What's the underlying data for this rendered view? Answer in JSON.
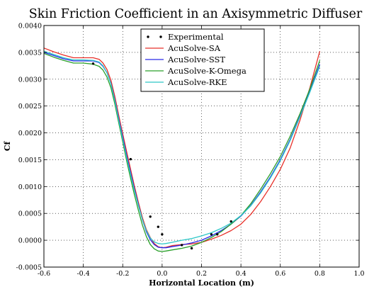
{
  "chart_data": {
    "type": "line",
    "title": "Skin Friction Coefficient in an Axisymmetric Diffuser",
    "xlabel": "Horizontal Location (m)",
    "ylabel": "Cf",
    "xlim": [
      -0.6,
      1.0
    ],
    "ylim": [
      -0.0005,
      0.004
    ],
    "grid": true,
    "grid_style": "dotted",
    "legend_position": "top-center",
    "x_ticks": [
      "-0.6",
      "-0.4",
      "-0.2",
      "0.0",
      "0.2",
      "0.4",
      "0.6",
      "0.8",
      "1.0"
    ],
    "x_tick_values": [
      -0.6,
      -0.4,
      -0.2,
      0.0,
      0.2,
      0.4,
      0.6,
      0.8,
      1.0
    ],
    "y_ticks": [
      "-0.0005",
      "0.0000",
      "0.0005",
      "0.0010",
      "0.0015",
      "0.0020",
      "0.0025",
      "0.0030",
      "0.0035",
      "0.0040"
    ],
    "y_tick_values": [
      -0.0005,
      0.0,
      0.0005,
      0.001,
      0.0015,
      0.002,
      0.0025,
      0.003,
      0.0035,
      0.004
    ],
    "scatter": {
      "name": "Experimental",
      "color": "#000000",
      "points": [
        [
          -0.35,
          0.00329
        ],
        [
          -0.16,
          0.00151
        ],
        [
          -0.06,
          0.00044
        ],
        [
          -0.02,
          0.00025
        ],
        [
          0.0,
          0.00011
        ],
        [
          0.1,
          -9e-05
        ],
        [
          0.15,
          -0.00015
        ],
        [
          0.25,
          0.00011
        ],
        [
          0.28,
          0.00011
        ],
        [
          0.35,
          0.00035
        ]
      ]
    },
    "series": [
      {
        "name": "AcuSolve-SA",
        "color": "#e8312a",
        "x": [
          -0.6,
          -0.55,
          -0.5,
          -0.45,
          -0.4,
          -0.35,
          -0.32,
          -0.3,
          -0.28,
          -0.26,
          -0.24,
          -0.22,
          -0.2,
          -0.18,
          -0.16,
          -0.14,
          -0.12,
          -0.1,
          -0.08,
          -0.06,
          -0.04,
          -0.02,
          0.0,
          0.02,
          0.05,
          0.1,
          0.15,
          0.2,
          0.25,
          0.3,
          0.35,
          0.4,
          0.45,
          0.5,
          0.55,
          0.6,
          0.65,
          0.7,
          0.75,
          0.8
        ],
        "y": [
          0.00358,
          0.00351,
          0.00345,
          0.0034,
          0.0034,
          0.0034,
          0.00337,
          0.0033,
          0.00318,
          0.00298,
          0.00268,
          0.00232,
          0.00198,
          0.00165,
          0.00132,
          0.001,
          0.0007,
          0.00042,
          0.0002,
          5e-05,
          -6e-05,
          -0.00012,
          -0.00014,
          -0.00013,
          -0.0001,
          -8e-05,
          -7e-05,
          -4e-05,
          2e-05,
          9e-05,
          0.00018,
          0.0003,
          0.00048,
          0.00072,
          0.001,
          0.00132,
          0.00172,
          0.00224,
          0.00284,
          0.00352
        ]
      },
      {
        "name": "AcuSolve-SST",
        "color": "#2a2ae8",
        "x": [
          -0.6,
          -0.55,
          -0.5,
          -0.45,
          -0.4,
          -0.35,
          -0.32,
          -0.3,
          -0.28,
          -0.26,
          -0.24,
          -0.22,
          -0.2,
          -0.18,
          -0.16,
          -0.14,
          -0.12,
          -0.1,
          -0.08,
          -0.06,
          -0.04,
          -0.02,
          0.0,
          0.02,
          0.05,
          0.1,
          0.15,
          0.2,
          0.25,
          0.3,
          0.35,
          0.4,
          0.45,
          0.5,
          0.55,
          0.6,
          0.65,
          0.7,
          0.75,
          0.8
        ],
        "y": [
          0.0035,
          0.00344,
          0.00338,
          0.00334,
          0.00334,
          0.00334,
          0.00331,
          0.00324,
          0.00312,
          0.00292,
          0.00262,
          0.00226,
          0.00192,
          0.00158,
          0.00126,
          0.00095,
          0.00066,
          0.00038,
          0.00016,
          1e-05,
          -8e-05,
          -0.00013,
          -0.00014,
          -0.00014,
          -0.00012,
          -9e-05,
          -5e-05,
          0.0,
          8e-05,
          0.00018,
          0.0003,
          0.00045,
          0.00065,
          0.0009,
          0.00118,
          0.0015,
          0.00188,
          0.00232,
          0.00278,
          0.00328
        ]
      },
      {
        "name": "AcuSolve-K-Omega",
        "color": "#2aa02a",
        "x": [
          -0.6,
          -0.55,
          -0.5,
          -0.45,
          -0.4,
          -0.35,
          -0.32,
          -0.3,
          -0.28,
          -0.26,
          -0.24,
          -0.22,
          -0.2,
          -0.18,
          -0.16,
          -0.14,
          -0.12,
          -0.1,
          -0.08,
          -0.06,
          -0.04,
          -0.02,
          0.0,
          0.02,
          0.05,
          0.1,
          0.15,
          0.2,
          0.25,
          0.3,
          0.35,
          0.4,
          0.45,
          0.5,
          0.55,
          0.6,
          0.65,
          0.7,
          0.75,
          0.8
        ],
        "y": [
          0.00348,
          0.00341,
          0.00335,
          0.0033,
          0.0033,
          0.00328,
          0.00324,
          0.00317,
          0.00304,
          0.00284,
          0.00254,
          0.00218,
          0.00183,
          0.00148,
          0.00115,
          0.00084,
          0.00055,
          0.00028,
          7e-05,
          -8e-05,
          -0.00016,
          -0.0002,
          -0.00021,
          -0.0002,
          -0.00018,
          -0.00015,
          -0.00011,
          -4e-05,
          5e-05,
          0.00016,
          0.0003,
          0.00046,
          0.00068,
          0.00095,
          0.00124,
          0.00156,
          0.00194,
          0.00236,
          0.00282,
          0.00335
        ]
      },
      {
        "name": "AcuSolve-RKE",
        "color": "#2ec8c8",
        "x": [
          -0.6,
          -0.55,
          -0.5,
          -0.45,
          -0.4,
          -0.35,
          -0.32,
          -0.3,
          -0.28,
          -0.26,
          -0.24,
          -0.22,
          -0.2,
          -0.18,
          -0.16,
          -0.14,
          -0.12,
          -0.1,
          -0.08,
          -0.06,
          -0.04,
          -0.02,
          0.0,
          0.02,
          0.05,
          0.1,
          0.15,
          0.2,
          0.25,
          0.3,
          0.35,
          0.4,
          0.45,
          0.5,
          0.55,
          0.6,
          0.65,
          0.7,
          0.75,
          0.8
        ],
        "y": [
          0.00352,
          0.00346,
          0.0034,
          0.00336,
          0.00336,
          0.00335,
          0.00332,
          0.00325,
          0.00312,
          0.00291,
          0.0026,
          0.00223,
          0.00188,
          0.00154,
          0.00122,
          0.00092,
          0.00064,
          0.00038,
          0.00018,
          4e-05,
          -3e-05,
          -6e-05,
          -7e-05,
          -6e-05,
          -4e-05,
          0.0,
          3e-05,
          8e-05,
          0.00014,
          0.00022,
          0.00032,
          0.00046,
          0.00064,
          0.00088,
          0.00116,
          0.00148,
          0.00186,
          0.0023,
          0.00276,
          0.00324
        ]
      }
    ]
  }
}
